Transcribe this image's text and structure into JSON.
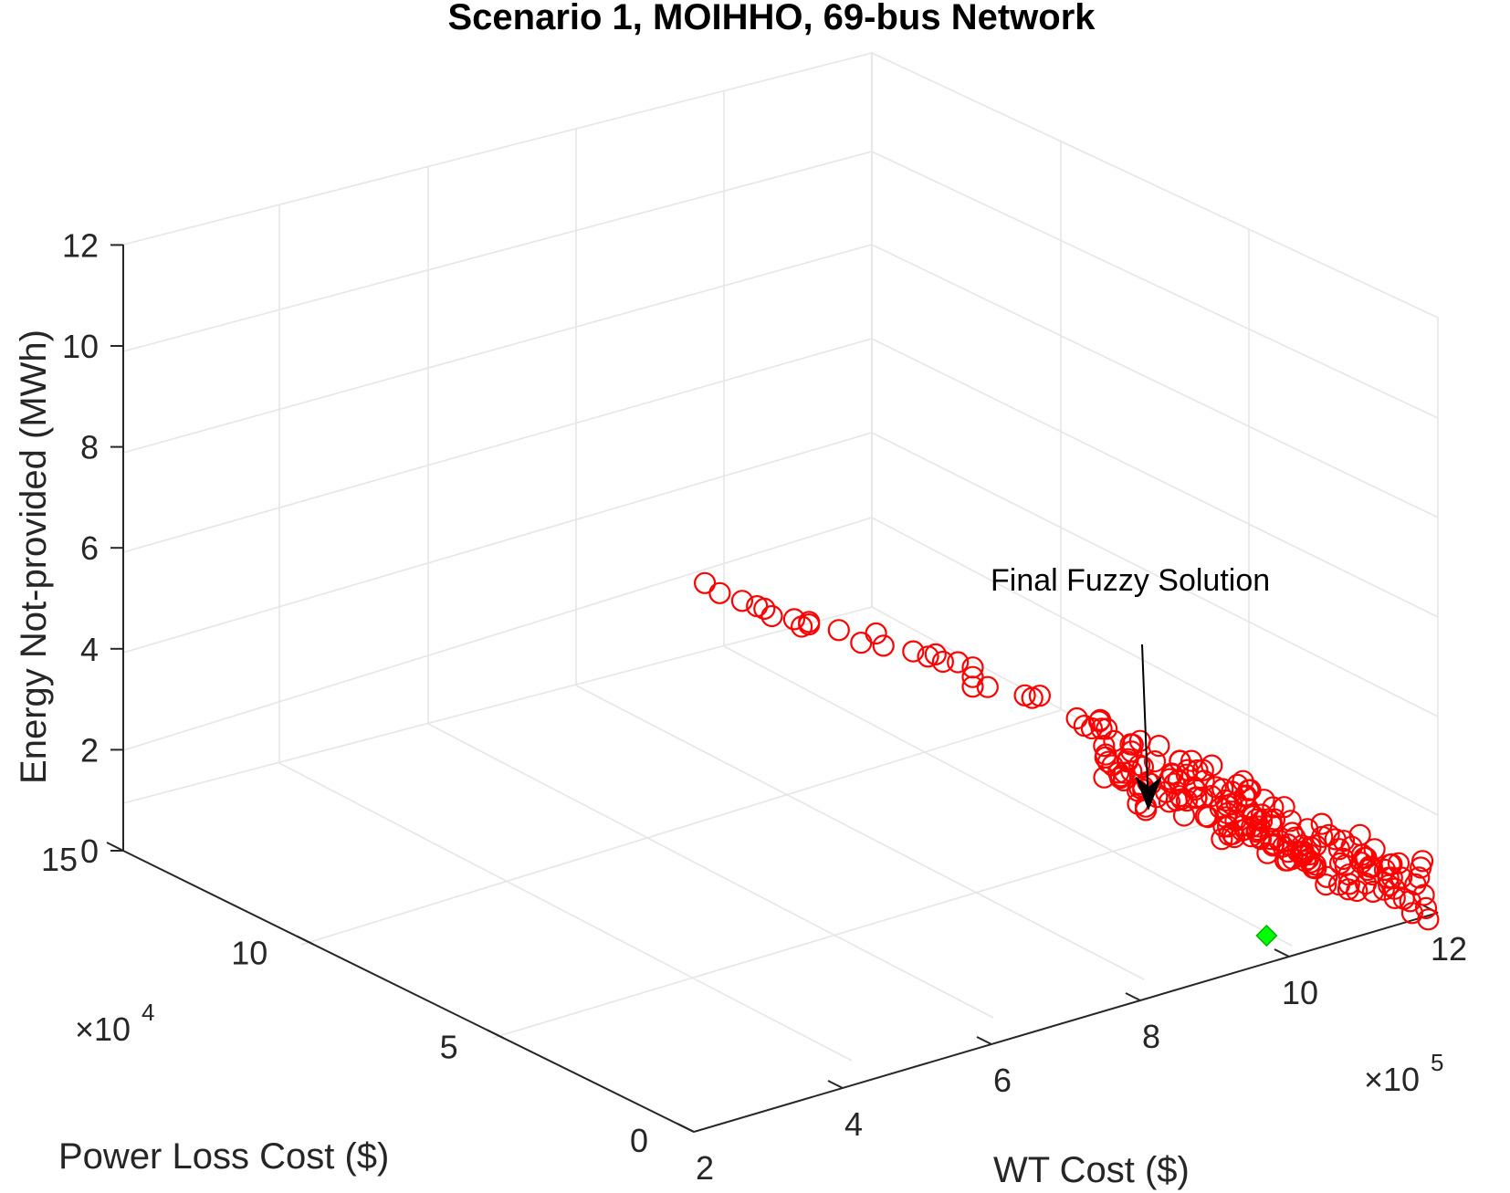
{
  "chart_data": {
    "type": "scatter",
    "title": "Scenario 1, MOIHHO, 69-bus Network",
    "xlabel": "WT Cost ($)",
    "ylabel": "Power Loss Cost ($)",
    "zlabel": "Energy Not-provided (MWh)",
    "x_scale_label": "×10",
    "x_scale_exp": "5",
    "y_scale_label": "×10",
    "y_scale_exp": "4",
    "xlim": [
      2,
      12
    ],
    "ylim": [
      0,
      15
    ],
    "zlim": [
      0,
      12
    ],
    "x_ticks": [
      "2",
      "4",
      "6",
      "8",
      "10",
      "12"
    ],
    "y_ticks": [
      "0",
      "5",
      "10",
      "15"
    ],
    "z_ticks": [
      "0",
      "2",
      "4",
      "6",
      "8",
      "10",
      "12"
    ],
    "grid": true,
    "colors": {
      "pareto": "#ff0000",
      "fuzzy": "#00ff00",
      "grid": "#e6e6e6",
      "axis": "#262626"
    },
    "annotation": "Final Fuzzy Solution",
    "fuzzy_solution": {
      "x": 9.8,
      "y": 0.2,
      "z": 0.45
    },
    "series": [
      {
        "marker": "circle",
        "points": [
          [
            2.2,
            0.1,
            11.3
          ],
          [
            2.4,
            0.1,
            11.0
          ],
          [
            2.7,
            0.1,
            10.7
          ],
          [
            2.9,
            0.1,
            10.5
          ],
          [
            3.0,
            0.1,
            10.4
          ],
          [
            3.1,
            0.1,
            10.2
          ],
          [
            3.4,
            0.1,
            10.0
          ],
          [
            3.5,
            0.1,
            9.8
          ],
          [
            3.6,
            0.1,
            9.85
          ],
          [
            3.6,
            0.1,
            9.8
          ],
          [
            4.0,
            0.1,
            9.5
          ],
          [
            4.3,
            0.1,
            9.1
          ],
          [
            4.5,
            0.1,
            9.2
          ],
          [
            4.6,
            0.1,
            8.9
          ],
          [
            5.0,
            0.1,
            8.6
          ],
          [
            5.2,
            0.1,
            8.4
          ],
          [
            5.3,
            0.1,
            8.4
          ],
          [
            5.4,
            0.1,
            8.2
          ],
          [
            5.6,
            0.1,
            8.1
          ],
          [
            5.8,
            0.1,
            7.9
          ],
          [
            5.8,
            0.1,
            7.7
          ],
          [
            5.8,
            0.1,
            7.5
          ],
          [
            6.0,
            0.1,
            7.4
          ],
          [
            6.5,
            0.1,
            7.0
          ],
          [
            6.6,
            0.1,
            6.9
          ],
          [
            6.7,
            0.1,
            6.9
          ],
          [
            7.2,
            0.1,
            6.2
          ],
          [
            7.3,
            0.1,
            6.0
          ],
          [
            7.4,
            0.1,
            5.9
          ],
          [
            7.5,
            0.1,
            6.0
          ],
          [
            7.6,
            0.1,
            5.8
          ],
          [
            7.7,
            0.1,
            5.5
          ]
        ]
      }
    ]
  }
}
